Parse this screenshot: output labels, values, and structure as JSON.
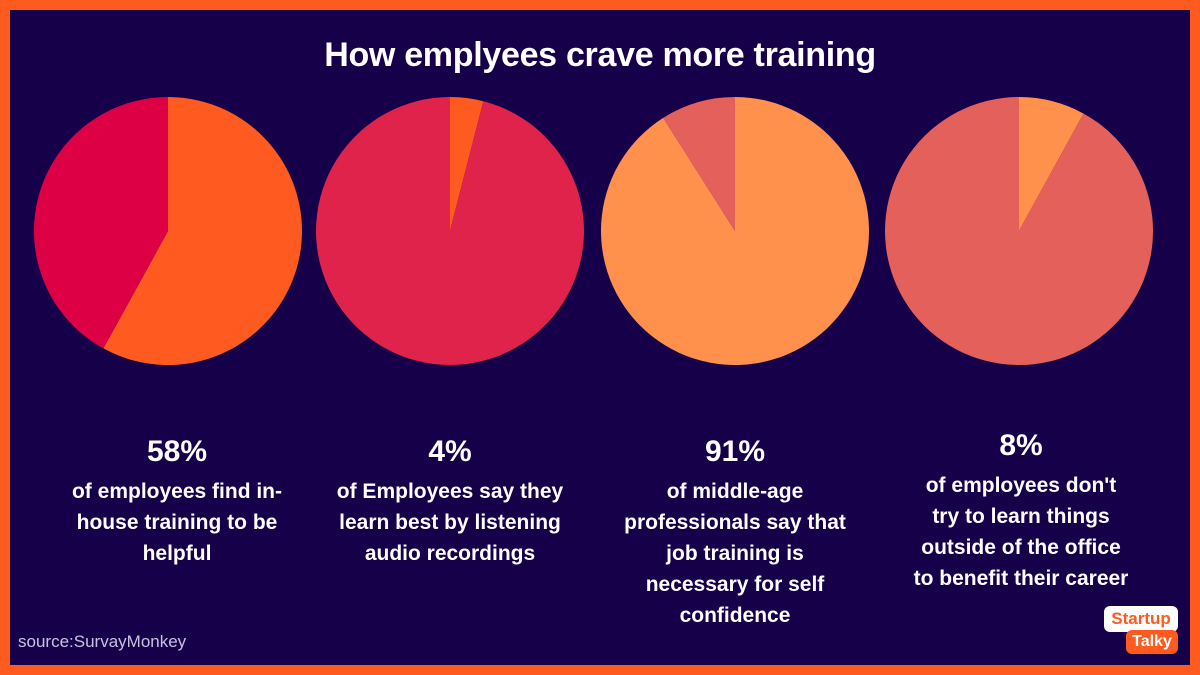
{
  "title": "How emplyees crave more training",
  "source": "source:SurvayMonkey",
  "logo": {
    "line1": "Startup",
    "line2": "Talky"
  },
  "chart_data": [
    {
      "type": "pie",
      "slices": [
        {
          "value": 58,
          "color": "#ff5a1f"
        },
        {
          "value": 42,
          "color": "#de0044"
        }
      ],
      "percent_label": "58%",
      "description": "of employees find in-house training to be helpful",
      "description_lines": [
        "of employees find in-",
        "house training to be",
        "helpful"
      ]
    },
    {
      "type": "pie",
      "slices": [
        {
          "value": 4,
          "color": "#ff5a1f"
        },
        {
          "value": 96,
          "color": "#e0234a"
        }
      ],
      "percent_label": "4%",
      "description": "of Employees say they learn best by listening audio recordings",
      "description_lines": [
        "of Employees say they",
        "learn best by listening",
        "audio recordings"
      ]
    },
    {
      "type": "pie",
      "slices": [
        {
          "value": 91,
          "color": "#ff914d"
        },
        {
          "value": 9,
          "color": "#e4605a"
        }
      ],
      "percent_label": "91%",
      "description": "of middle-age professionals say that job training is necessary for self confidence",
      "description_lines": [
        "of middle-age",
        "professionals say that",
        "job training is",
        "necessary for self",
        "confidence"
      ]
    },
    {
      "type": "pie",
      "slices": [
        {
          "value": 8,
          "color": "#ff914d"
        },
        {
          "value": 92,
          "color": "#e4605a"
        }
      ],
      "percent_label": "8%",
      "description": "of employees don't try to learn things outside of the office to benefit their career",
      "description_lines": [
        "of employees don't",
        "try to learn things",
        "outside of the office",
        "to benefit their career"
      ]
    }
  ]
}
